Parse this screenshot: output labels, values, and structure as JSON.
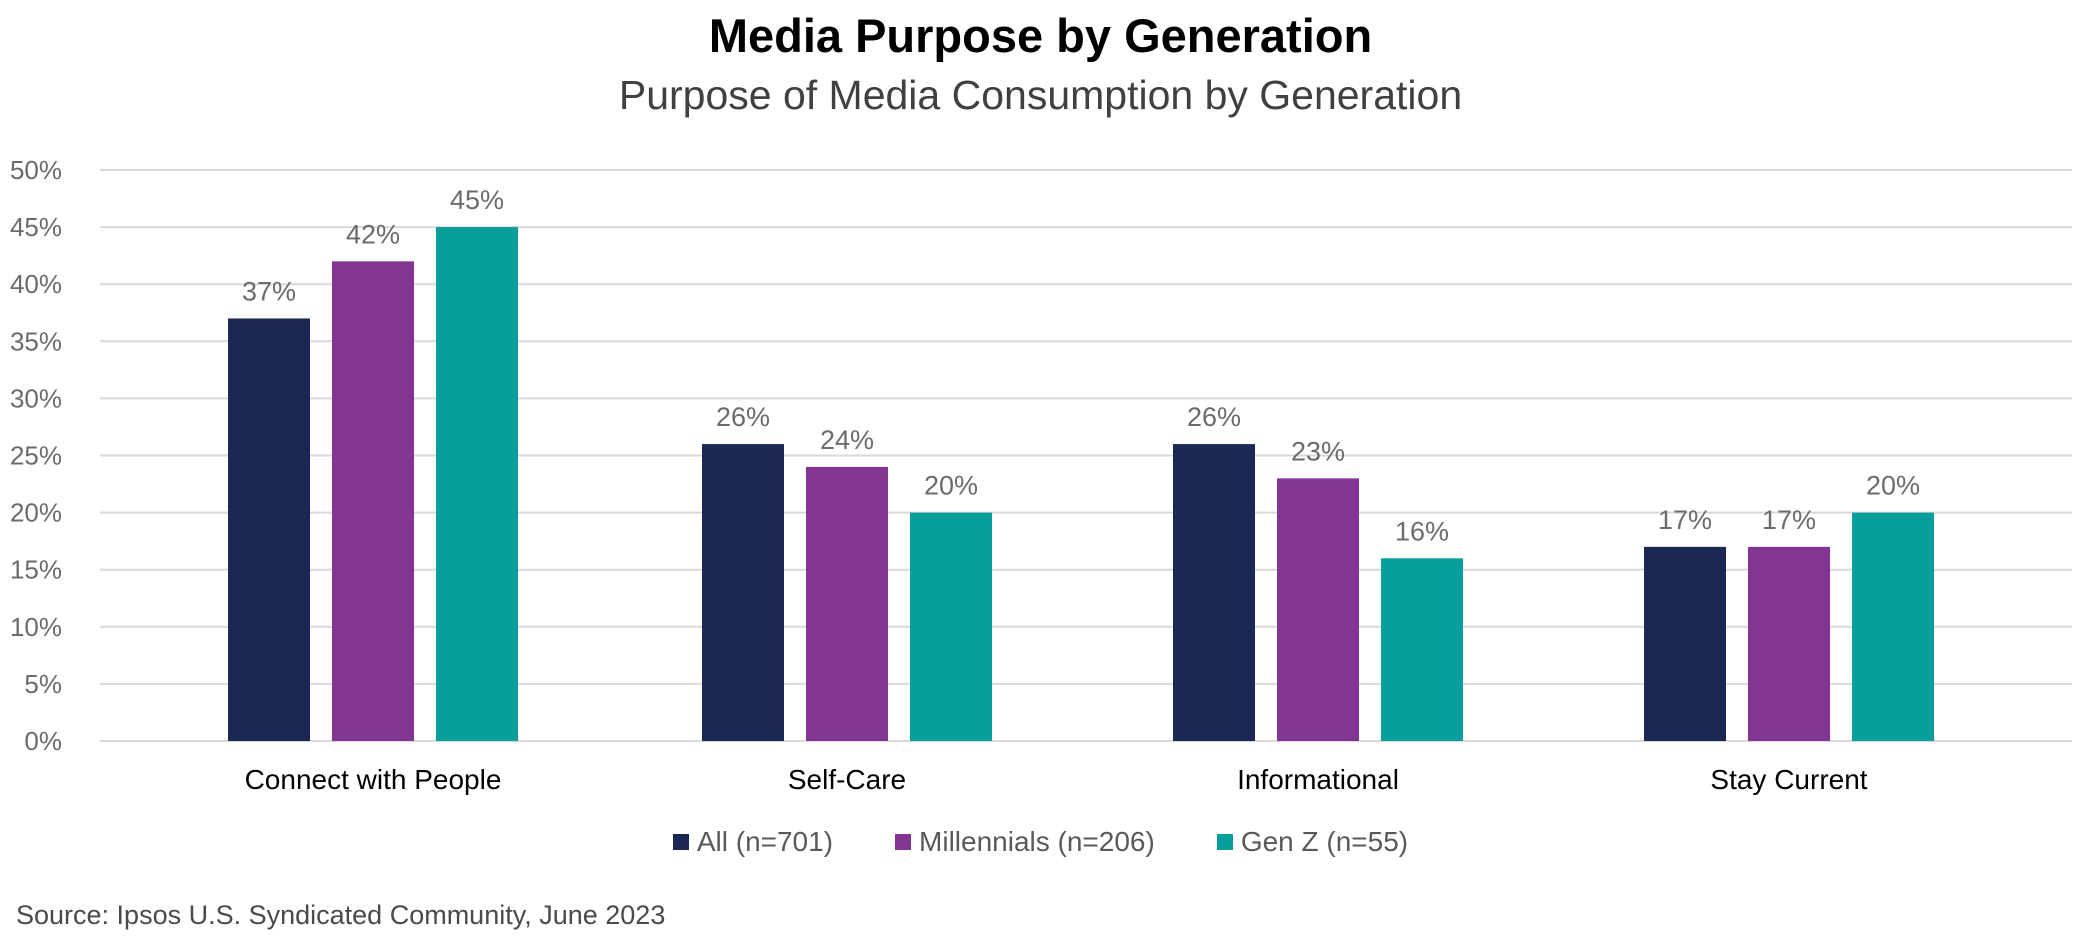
{
  "chart_data": {
    "type": "bar",
    "title": "Media Purpose by Generation",
    "subtitle": "Purpose of Media Consumption by Generation",
    "categories": [
      "Connect with People",
      "Self-Care",
      "Informational",
      "Stay Current"
    ],
    "series": [
      {
        "name": "All (n=701)",
        "color": "#1b2853",
        "values": [
          37,
          26,
          26,
          17
        ]
      },
      {
        "name": "Millennials (n=206)",
        "color": "#823592",
        "values": [
          42,
          24,
          23,
          17
        ]
      },
      {
        "name": "Gen Z (n=55)",
        "color": "#089e9c",
        "values": [
          45,
          20,
          16,
          20
        ]
      }
    ],
    "ylim": [
      0,
      50
    ],
    "ytick_step": 5,
    "value_suffix": "%",
    "grid": true,
    "legend_position": "bottom"
  },
  "source": "Source: Ipsos U.S. Syndicated Community, June 2023"
}
